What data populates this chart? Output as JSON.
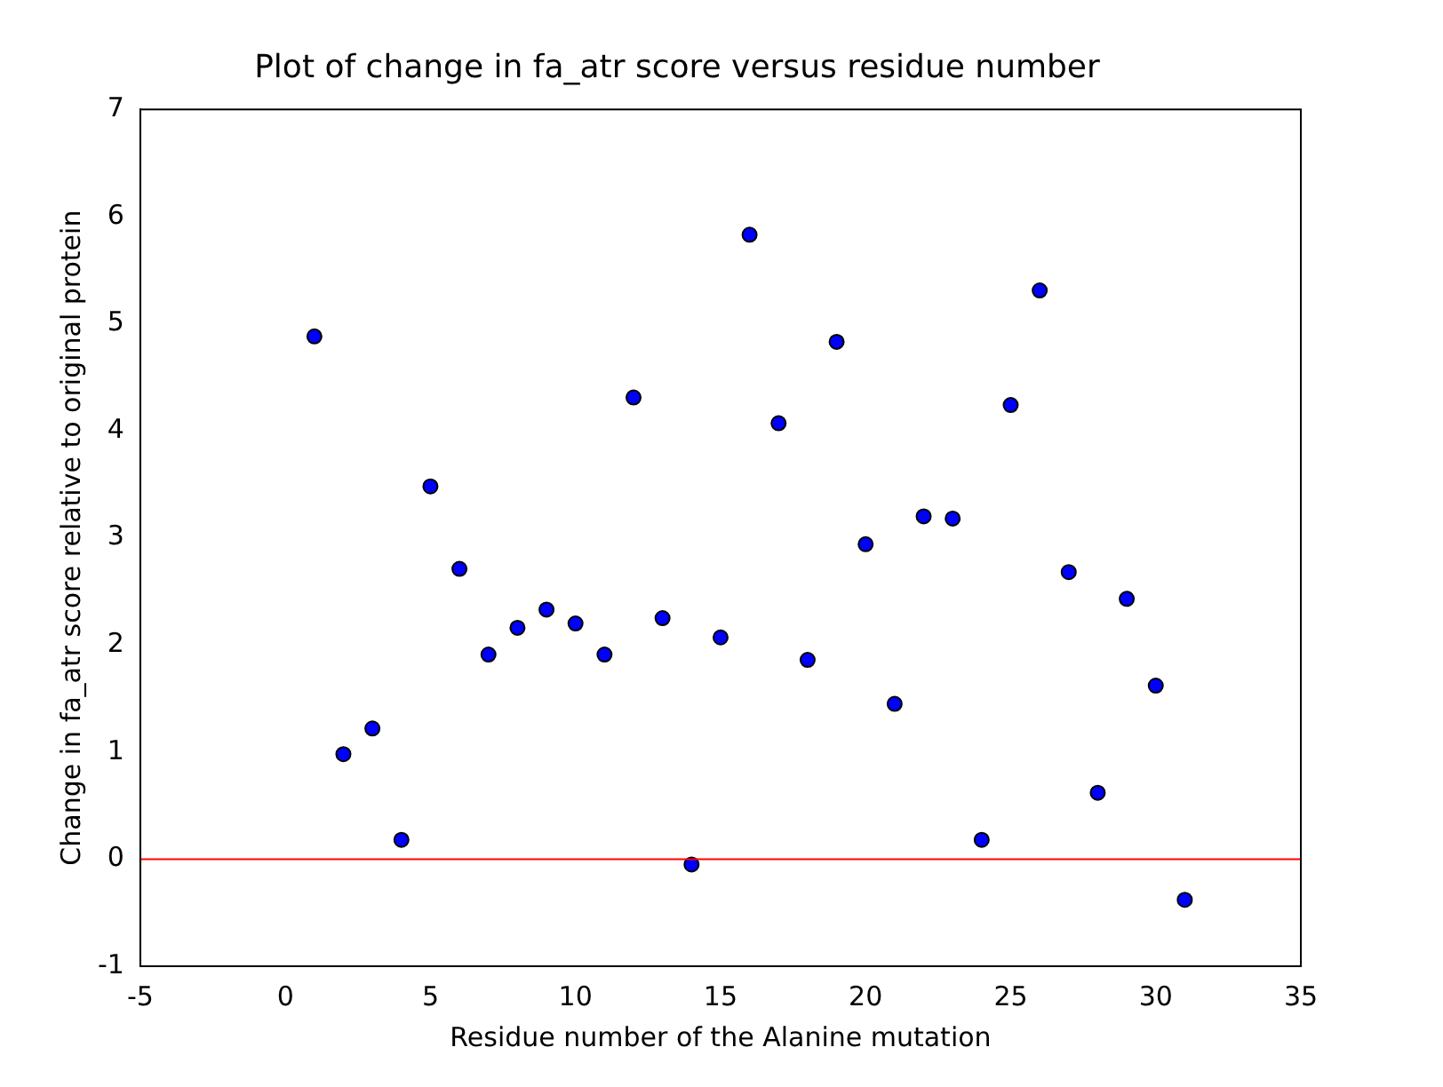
{
  "chart_data": {
    "type": "scatter",
    "title": "Plot of change in fa_atr score versus residue number",
    "xlabel": "Residue number of the Alanine mutation",
    "ylabel": "Change in fa_atr score relative to original protein",
    "x": [
      1,
      2,
      3,
      4,
      5,
      6,
      7,
      8,
      9,
      10,
      11,
      12,
      13,
      14,
      15,
      16,
      17,
      18,
      19,
      20,
      21,
      22,
      23,
      24,
      25,
      26,
      27,
      28,
      29,
      30,
      31
    ],
    "series": [
      {
        "color": "#0000ff",
        "values": [
          4.88,
          0.98,
          1.22,
          0.18,
          3.48,
          2.71,
          1.91,
          2.16,
          2.33,
          2.2,
          1.91,
          4.31,
          2.25,
          -0.05,
          2.07,
          5.83,
          4.07,
          1.86,
          4.83,
          2.94,
          1.45,
          3.2,
          3.18,
          0.18,
          4.24,
          5.31,
          2.68,
          0.62,
          2.43,
          1.62,
          -0.38
        ]
      }
    ],
    "xlim": [
      -5,
      35
    ],
    "xticks": [
      -5,
      0,
      5,
      10,
      15,
      20,
      25,
      30,
      35
    ],
    "ylim": [
      -1,
      7
    ],
    "yticks": [
      -1,
      0,
      1,
      2,
      3,
      4,
      5,
      6,
      7
    ],
    "ref_lines": [
      {
        "axis": "y",
        "value": 0,
        "color": "#ff0000"
      }
    ],
    "marker": "circle",
    "grid": false,
    "legend": false
  }
}
